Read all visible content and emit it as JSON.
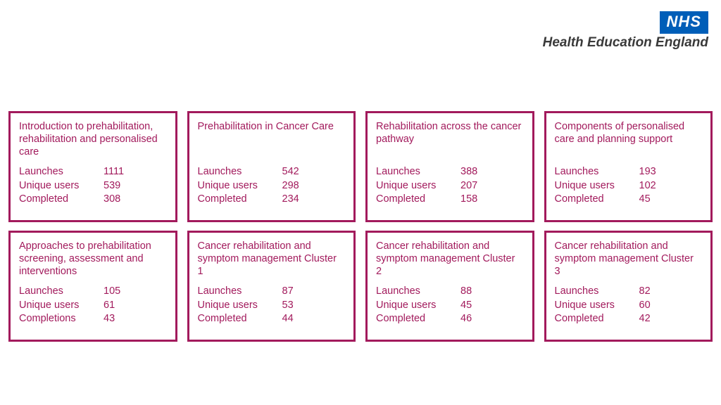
{
  "header": {
    "logo_text": "NHS",
    "subtitle": "Health Education England"
  },
  "layout": {
    "card_border_color": "#a21a5c",
    "card_text_color": "#a21a5c",
    "nhs_blue": "#005eb8",
    "cols": 4,
    "rows": 2
  },
  "cards": [
    {
      "title": "Introduction to prehabilitation, rehabilitation and personalised care",
      "stats": [
        {
          "label": "Launches",
          "value": "1111"
        },
        {
          "label": "Unique users",
          "value": "539"
        },
        {
          "label": "Completed",
          "value": "308"
        }
      ]
    },
    {
      "title": "Prehabilitation in Cancer Care",
      "stats": [
        {
          "label": "Launches",
          "value": "542"
        },
        {
          "label": "Unique users",
          "value": "298"
        },
        {
          "label": "Completed",
          "value": "234"
        }
      ]
    },
    {
      "title": "Rehabilitation across the cancer pathway",
      "stats": [
        {
          "label": "Launches",
          "value": "388"
        },
        {
          "label": "Unique users",
          "value": "207"
        },
        {
          "label": "Completed",
          "value": "158"
        }
      ]
    },
    {
      "title": "Components of personalised care and planning support",
      "stats": [
        {
          "label": "Launches",
          "value": "193"
        },
        {
          "label": "Unique users",
          "value": "102"
        },
        {
          "label": "Completed",
          "value": "45"
        }
      ]
    },
    {
      "title": "Approaches to prehabilitation screening, assessment and interventions",
      "stats": [
        {
          "label": "Launches",
          "value": "105"
        },
        {
          "label": "Unique users",
          "value": "61"
        },
        {
          "label": "Completions",
          "value": "43"
        }
      ]
    },
    {
      "title": "Cancer rehabilitation and symptom management Cluster 1",
      "stats": [
        {
          "label": "Launches",
          "value": "87"
        },
        {
          "label": "Unique users",
          "value": "53"
        },
        {
          "label": "Completed",
          "value": "44"
        }
      ]
    },
    {
      "title": "Cancer rehabilitation and symptom management Cluster 2",
      "stats": [
        {
          "label": "Launches",
          "value": "88"
        },
        {
          "label": "Unique users",
          "value": "45"
        },
        {
          "label": "Completed",
          "value": "46"
        }
      ]
    },
    {
      "title": "Cancer rehabilitation and symptom management Cluster 3",
      "stats": [
        {
          "label": "Launches",
          "value": "82"
        },
        {
          "label": "Unique users",
          "value": "60"
        },
        {
          "label": "Completed",
          "value": "42"
        }
      ]
    }
  ]
}
